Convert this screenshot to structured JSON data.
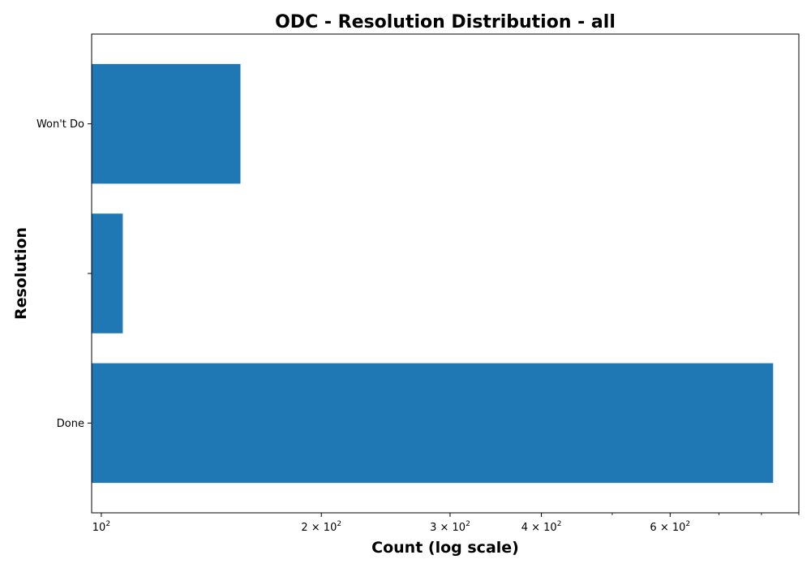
{
  "chart_data": {
    "type": "bar",
    "orientation": "horizontal",
    "title": "ODC - Resolution Distribution - all",
    "xlabel": "Count (log scale)",
    "ylabel": "Resolution",
    "x_scale": "log",
    "xlim": [
      97,
      900
    ],
    "categories": [
      "Done",
      "",
      "Won't Do"
    ],
    "values": [
      830,
      107,
      155
    ],
    "bar_color": "#1f77b4",
    "x_ticks": [
      {
        "value": 100,
        "coef": "",
        "exp": "2"
      },
      {
        "value": 200,
        "coef": "2",
        "exp": "2"
      },
      {
        "value": 300,
        "coef": "3",
        "exp": "2"
      },
      {
        "value": 400,
        "coef": "4",
        "exp": "2"
      },
      {
        "value": 600,
        "coef": "6",
        "exp": "2"
      }
    ],
    "x_minor_ticks": [
      500,
      700,
      800,
      900
    ],
    "grid": false,
    "legend": "none"
  }
}
